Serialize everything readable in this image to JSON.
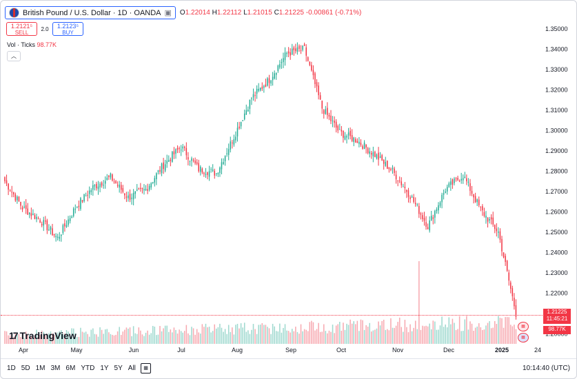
{
  "header": {
    "symbol_title": "British Pound / U.S. Dollar · 1D · OANDA",
    "ohlc": {
      "o_label": "O",
      "o": "1.22014",
      "h_label": "H",
      "h": "1.22112",
      "l_label": "L",
      "l": "1.21015",
      "c_label": "C",
      "c": "1.21225",
      "change": "-0.00861 (-0.71%)"
    },
    "sell": {
      "price": "1.2121⁵",
      "label": "SELL"
    },
    "buy": {
      "price": "1.2123⁵",
      "label": "BUY"
    },
    "spread": "2.0",
    "vol_label": "Vol · Ticks",
    "vol_value": "98.77K",
    "collapse_icon": "chevron-up-icon"
  },
  "logo_text": "TradingView",
  "price_tag": {
    "price": "1.21225",
    "countdown": "11:45:21",
    "volume": "98.77K"
  },
  "bottom": {
    "timeframes": [
      "1D",
      "5D",
      "1M",
      "3M",
      "6M",
      "YTD",
      "1Y",
      "5Y",
      "All"
    ],
    "clock": "10:14:40 (UTC)"
  },
  "colors": {
    "up": "#22ab94",
    "down": "#f23645",
    "vol_up": "#9fd9cf",
    "vol_down": "#f7a9b0",
    "accent": "#2962ff"
  },
  "chart_data": {
    "type": "candlestick",
    "symbol": "GBPUSD",
    "interval": "1D",
    "y_axis": {
      "min": 1.195,
      "max": 1.355,
      "ticks": [
        "1.35000",
        "1.34000",
        "1.33000",
        "1.32000",
        "1.31000",
        "1.30000",
        "1.29000",
        "1.28000",
        "1.27000",
        "1.26000",
        "1.25000",
        "1.24000",
        "1.23000",
        "1.22000",
        "1.21000",
        "1.20000"
      ]
    },
    "x_axis": {
      "ticks": [
        "Apr",
        "May",
        "Jun",
        "Jul",
        "Aug",
        "Sep",
        "Oct",
        "Nov",
        "Dec",
        "2025",
        "24"
      ]
    },
    "close_anchors": [
      [
        0,
        1.275
      ],
      [
        10,
        1.262
      ],
      [
        20,
        1.256
      ],
      [
        30,
        1.247
      ],
      [
        40,
        1.262
      ],
      [
        50,
        1.272
      ],
      [
        60,
        1.277
      ],
      [
        70,
        1.267
      ],
      [
        80,
        1.271
      ],
      [
        90,
        1.283
      ],
      [
        100,
        1.292
      ],
      [
        110,
        1.281
      ],
      [
        120,
        1.279
      ],
      [
        130,
        1.297
      ],
      [
        140,
        1.316
      ],
      [
        150,
        1.325
      ],
      [
        160,
        1.338
      ],
      [
        170,
        1.34
      ],
      [
        180,
        1.311
      ],
      [
        190,
        1.299
      ],
      [
        200,
        1.295
      ],
      [
        210,
        1.288
      ],
      [
        220,
        1.28
      ],
      [
        230,
        1.268
      ],
      [
        240,
        1.253
      ],
      [
        250,
        1.271
      ],
      [
        260,
        1.278
      ],
      [
        270,
        1.261
      ],
      [
        280,
        1.25
      ],
      [
        290,
        1.21
      ]
    ],
    "volume": {
      "last": 98770,
      "peak": 240000,
      "typical": 40000
    }
  }
}
